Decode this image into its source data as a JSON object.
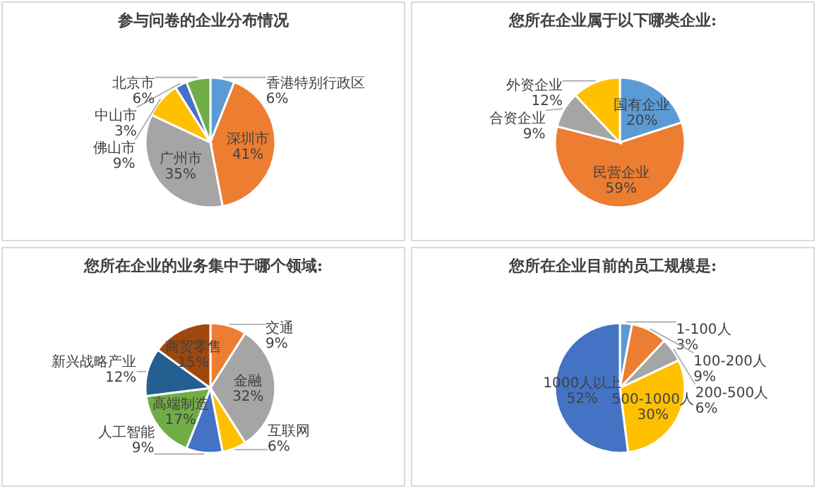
{
  "chart_data": [
    {
      "type": "pie",
      "title": "参与问卷的企业分布情况",
      "categories": [
        "香港特别行政区",
        "深圳市",
        "广州市",
        "佛山市",
        "中山市",
        "北京市"
      ],
      "values": [
        6,
        41,
        35,
        9,
        3,
        6
      ],
      "value_labels": [
        "6%",
        "41%",
        "35%",
        "9%",
        "3%",
        "6%"
      ],
      "colors": [
        "#5b9bd5",
        "#ed7d31",
        "#a5a5a5",
        "#ffc000",
        "#4472c4",
        "#70ad47"
      ]
    },
    {
      "type": "pie",
      "title": "您所在企业属于以下哪类企业:",
      "categories": [
        "国有企业",
        "民营企业",
        "合资企业",
        "外资企业"
      ],
      "values": [
        20,
        59,
        9,
        12
      ],
      "value_labels": [
        "20%",
        "59%",
        "9%",
        "12%"
      ],
      "colors": [
        "#5b9bd5",
        "#ed7d31",
        "#a5a5a5",
        "#ffc000"
      ]
    },
    {
      "type": "pie",
      "title": "您所在企业的业务集中于哪个领域:",
      "categories": [
        "交通",
        "金融",
        "互联网",
        "人工智能",
        "高端制造",
        "新兴战略产业",
        "商贸零售"
      ],
      "values": [
        9,
        32,
        6,
        9,
        17,
        12,
        15
      ],
      "value_labels": [
        "9%",
        "32%",
        "6%",
        "9%",
        "17%",
        "12%",
        "15%"
      ],
      "colors": [
        "#ed7d31",
        "#a5a5a5",
        "#ffc000",
        "#4472c4",
        "#70ad47",
        "#255e91",
        "#9e480e"
      ]
    },
    {
      "type": "pie",
      "title": "您所在企业目前的员工规模是:",
      "categories": [
        "1-100人",
        "100-200人",
        "200-500人",
        "500-1000人",
        "1000人以上"
      ],
      "values": [
        3,
        9,
        6,
        30,
        52
      ],
      "value_labels": [
        "3%",
        "9%",
        "6%",
        "30%",
        "52%"
      ],
      "colors": [
        "#5b9bd5",
        "#ed7d31",
        "#a5a5a5",
        "#ffc000",
        "#4472c4"
      ]
    }
  ]
}
